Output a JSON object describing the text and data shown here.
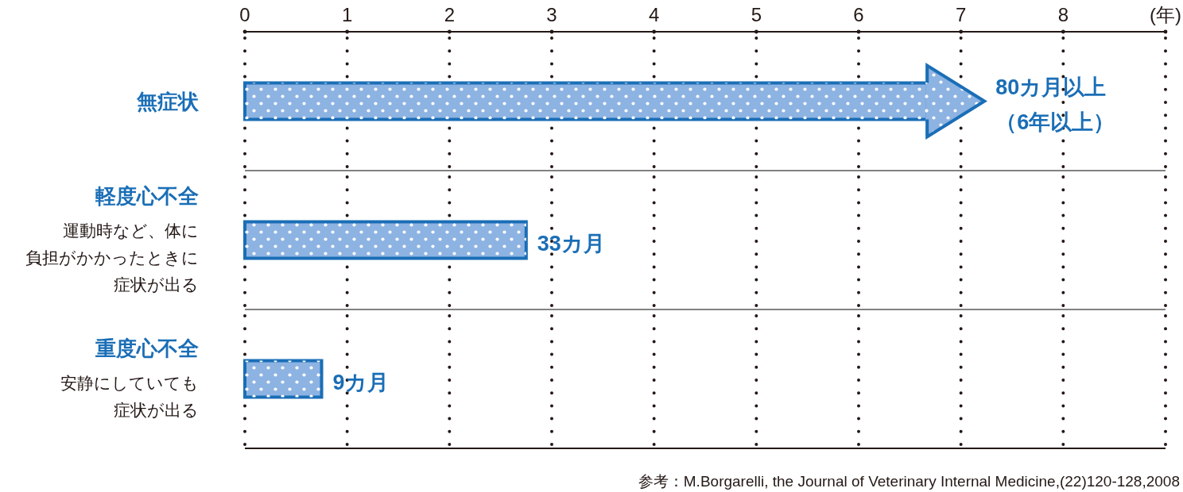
{
  "chart_data": [
    {
      "type": "bar",
      "orientation": "horizontal",
      "categories": [
        "無症状"
      ],
      "values": [
        6.67
      ],
      "color": "#8db3e2",
      "marker": "triangle",
      "xlim": [
        0,
        9
      ],
      "xticks": [
        0,
        1,
        2,
        3,
        4,
        5,
        6,
        7,
        8
      ],
      "xlabel": "(年)",
      "grid": "x",
      "annotations": [
        "80カ月以上",
        "（6年以上）"
      ]
    },
    {
      "type": "bar",
      "orientation": "horizontal",
      "categories": [
        "軽度心不全"
      ],
      "values": [
        2.75
      ],
      "color": "#8db3e2",
      "xlim": [
        0,
        9
      ],
      "xticks": [
        0,
        1,
        2,
        3,
        4,
        5,
        6,
        7,
        8
      ],
      "grid": "x",
      "tick_labels": "y",
      "annotations": [
        "運動時など、体に",
        "負担がかかったときに",
        "症状が出る",
        "33カ月"
      ]
    },
    {
      "type": "bar",
      "orientation": "horizontal",
      "categories": [
        "重度心不全"
      ],
      "values": [
        0.75
      ],
      "color": "#8db3e2",
      "xlim": [
        0,
        9
      ],
      "xticks": [
        0,
        1,
        2,
        3,
        4,
        5,
        6,
        7,
        8
      ],
      "grid": "x",
      "tick_labels": "y",
      "annotations": [
        "安静にしていても",
        "症状が出る",
        "9カ月",
        "参考：M.Borgarelli, the Journal of Veterinary Internal Medicine,(22)120-128,2008"
      ]
    }
  ]
}
